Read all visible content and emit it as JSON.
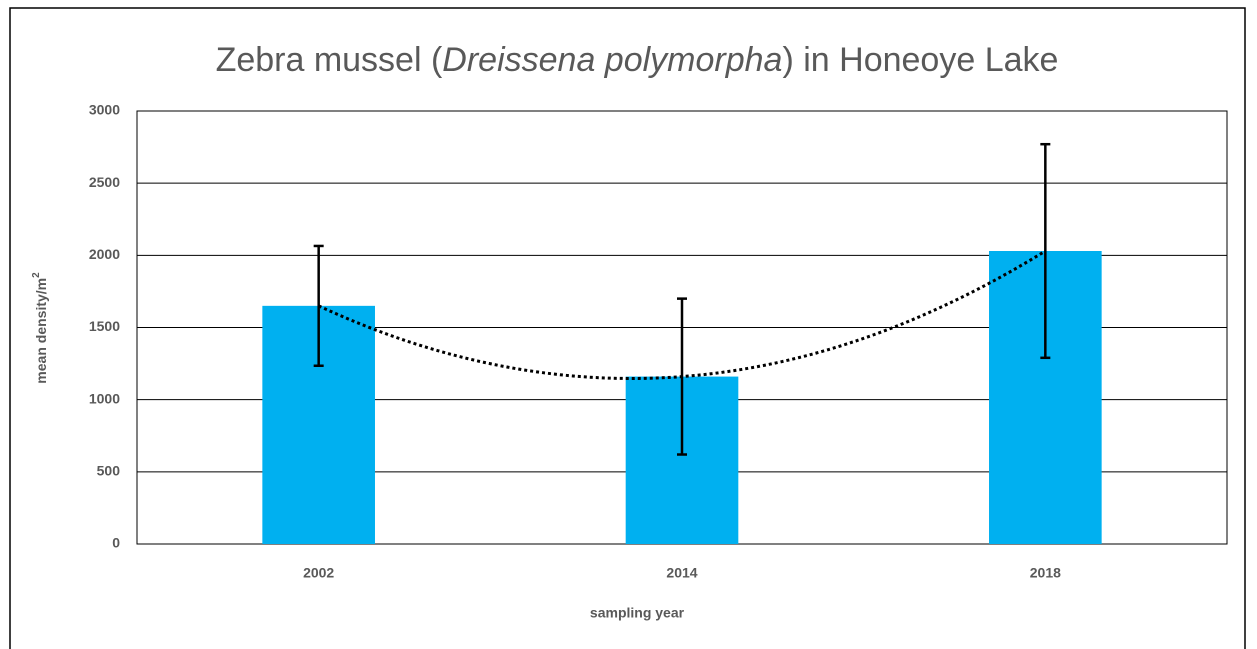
{
  "chart_data": {
    "type": "bar",
    "title_parts": [
      "Zebra mussel (",
      "Dreissena polymorpha",
      ")  in Honeoye Lake"
    ],
    "ylabel": "mean density/m",
    "ylabel_superscript": "2",
    "xlabel": "sampling year",
    "categories": [
      "2002",
      "2014",
      "2018"
    ],
    "values": [
      1650,
      1160,
      2030
    ],
    "errors": [
      415,
      540,
      740
    ],
    "color": "#00b0f0",
    "ylim": [
      0,
      3000
    ],
    "yticks": [
      0,
      500,
      1000,
      1500,
      2000,
      2500,
      3000
    ],
    "grid": true,
    "trendline": {
      "type": "polynomial",
      "order": 2,
      "style": "dotted"
    }
  }
}
